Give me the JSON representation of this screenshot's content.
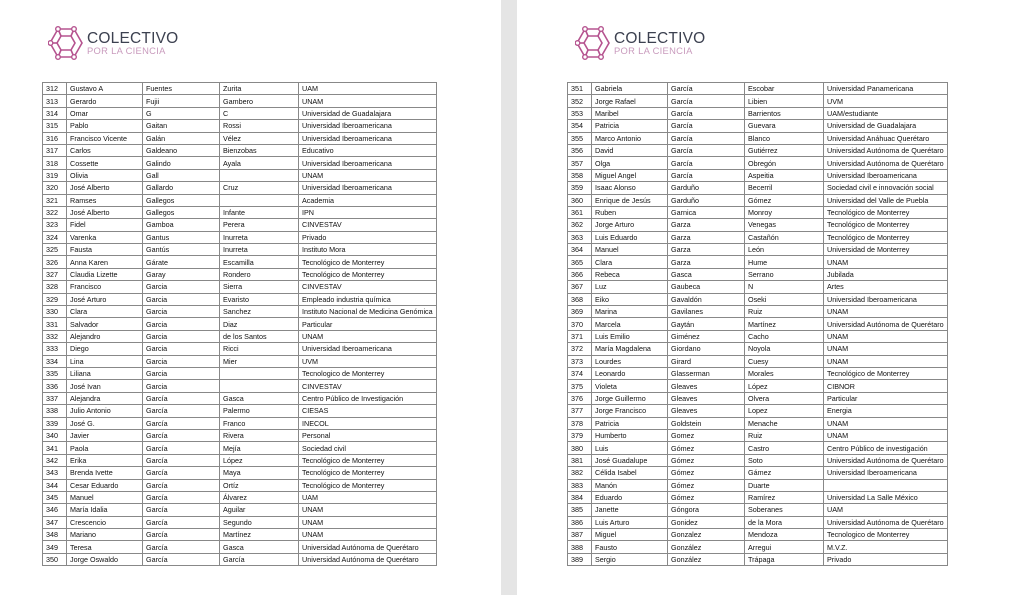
{
  "logo": {
    "title": "COLECTIVO",
    "subtitle": "POR LA CIENCIA",
    "color": "#b5538f"
  },
  "pages": [
    {
      "rows": [
        [
          "312",
          "Gustavo A",
          "Fuentes",
          "Zurita",
          "UAM"
        ],
        [
          "313",
          "Gerardo",
          "Fujii",
          "Gambero",
          "UNAM"
        ],
        [
          "314",
          "Omar",
          "G",
          "C",
          "Universidad de Guadalajara"
        ],
        [
          "315",
          "Pablo",
          "Gaitan",
          "Rossi",
          "Universidad Iberoamericana"
        ],
        [
          "316",
          "Francisco Vicente",
          "Galán",
          "Vélez",
          "Universidad Iberoamericana"
        ],
        [
          "317",
          "Carlos",
          "Galdeano",
          "Bienzobas",
          "Educativo"
        ],
        [
          "318",
          "Cossette",
          "Galindo",
          "Ayala",
          "Universidad Iberoamericana"
        ],
        [
          "319",
          "Olivia",
          "Gall",
          "",
          "UNAM"
        ],
        [
          "320",
          "José Alberto",
          "Gallardo",
          "Cruz",
          "Universidad Iberoamericana"
        ],
        [
          "321",
          "Ramses",
          "Gallegos",
          "",
          "Academia"
        ],
        [
          "322",
          "José Alberto",
          "Gallegos",
          "Infante",
          "IPN"
        ],
        [
          "323",
          "Fidel",
          "Gamboa",
          "Perera",
          "CINVESTAV"
        ],
        [
          "324",
          "Varenka",
          "Gantus",
          "Inurreta",
          "Privado"
        ],
        [
          "325",
          "Fausta",
          "Gantús",
          "Inurreta",
          "Instituto Mora"
        ],
        [
          "326",
          "Anna Karen",
          "Gárate",
          "Escamilla",
          "Tecnológico de Monterrey"
        ],
        [
          "327",
          "Claudia Lizette",
          "Garay",
          "Rondero",
          "Tecnológico de Monterrey"
        ],
        [
          "328",
          "Francisco",
          "Garcia",
          "Sierra",
          "CINVESTAV"
        ],
        [
          "329",
          "José Arturo",
          "Garcia",
          "Evaristo",
          "Empleado industria química"
        ],
        [
          "330",
          "Clara",
          "Garcia",
          "Sanchez",
          "Instituto Nacional de Medicina Genómica"
        ],
        [
          "331",
          "Salvador",
          "Garcia",
          "Diaz",
          "Particular"
        ],
        [
          "332",
          "Alejandro",
          "Garcia",
          "de los Santos",
          "UNAM"
        ],
        [
          "333",
          "Diego",
          "Garcia",
          "Ricci",
          "Universidad Iberoamericana"
        ],
        [
          "334",
          "Lina",
          "Garcia",
          "Mier",
          "UVM"
        ],
        [
          "335",
          "Liliana",
          "Garcia",
          "",
          "Tecnologico de Monterrey"
        ],
        [
          "336",
          "José Ivan",
          "Garcia",
          "",
          "CINVESTAV"
        ],
        [
          "337",
          "Alejandra",
          "García",
          "Gasca",
          "Centro Público de Investigación"
        ],
        [
          "338",
          "Julio Antonio",
          "García",
          "Palermo",
          "CIESAS"
        ],
        [
          "339",
          "José G.",
          "García",
          "Franco",
          "INECOL"
        ],
        [
          "340",
          "Javier",
          "García",
          "Rivera",
          "Personal"
        ],
        [
          "341",
          "Paola",
          "García",
          "Mejía",
          "Sociedad civil"
        ],
        [
          "342",
          "Erika",
          "García",
          "López",
          "Tecnológico de Monterrey"
        ],
        [
          "343",
          "Brenda Ivette",
          "García",
          "Maya",
          "Tecnológico de Monterrey"
        ],
        [
          "344",
          "Cesar Eduardo",
          "García",
          "Ortíz",
          "Tecnológico de Monterrey"
        ],
        [
          "345",
          "Manuel",
          "García",
          "Álvarez",
          "UAM"
        ],
        [
          "346",
          "María Idalia",
          "García",
          "Aguilar",
          "UNAM"
        ],
        [
          "347",
          "Crescencio",
          "García",
          "Segundo",
          "UNAM"
        ],
        [
          "348",
          "Mariano",
          "García",
          "Martínez",
          "UNAM"
        ],
        [
          "349",
          "Teresa",
          "García",
          "Gasca",
          "Universidad Autónoma de Querétaro"
        ],
        [
          "350",
          "Jorge Oswaldo",
          "García",
          "García",
          "Universidad Autónoma de Querétaro"
        ]
      ]
    },
    {
      "rows": [
        [
          "351",
          "Gabriela",
          "García",
          "Escobar",
          "Universidad Panamericana"
        ],
        [
          "352",
          "Jorge Rafael",
          "García",
          "Libien",
          "UVM"
        ],
        [
          "353",
          "Maribel",
          "García",
          "Barrientos",
          "UAM/estudiante"
        ],
        [
          "354",
          "Patricia",
          "García",
          "Guevara",
          "Universidad de Guadalajara"
        ],
        [
          "355",
          "Marco Antonio",
          "García",
          "Blanco",
          "Universidad Anáhuac Querétaro"
        ],
        [
          "356",
          "David",
          "García",
          "Gutiérrez",
          "Universidad Autónoma de Querétaro"
        ],
        [
          "357",
          "Olga",
          "García",
          "Obregón",
          "Universidad Autónoma de Querétaro"
        ],
        [
          "358",
          "Miguel Angel",
          "García",
          "Aspeitia",
          "Universidad Iberoamericana"
        ],
        [
          "359",
          "Isaac Alonso",
          "Garduño",
          "Becerril",
          "Sociedad civil e innovación social"
        ],
        [
          "360",
          "Enrique de Jesús",
          "Garduño",
          "Gómez",
          "Universidad del Valle de Puebla"
        ],
        [
          "361",
          "Ruben",
          "Garnica",
          "Monroy",
          "Tecnológico de Monterrey"
        ],
        [
          "362",
          "Jorge Arturo",
          "Garza",
          "Venegas",
          "Tecnológico de Monterrey"
        ],
        [
          "363",
          "Luis Eduardo",
          "Garza",
          "Castañón",
          "Tecnológico de Monterrey"
        ],
        [
          "364",
          "Manuel",
          "Garza",
          "León",
          "Universidad de Monterrey"
        ],
        [
          "365",
          "Clara",
          "Garza",
          "Hume",
          "UNAM"
        ],
        [
          "366",
          "Rebeca",
          "Gasca",
          "Serrano",
          "Jubilada"
        ],
        [
          "367",
          "Luz",
          "Gaubeca",
          "N",
          "Artes"
        ],
        [
          "368",
          "Eiko",
          "Gavaldón",
          "Oseki",
          "Universidad Iberoamericana"
        ],
        [
          "369",
          "Marina",
          "Gavilanes",
          "Ruiz",
          "UNAM"
        ],
        [
          "370",
          "Marcela",
          "Gaytán",
          "Martínez",
          "Universidad Autónoma de Querétaro"
        ],
        [
          "371",
          "Luis Emilio",
          "Giménez",
          "Cacho",
          "UNAM"
        ],
        [
          "372",
          "María Magdalena",
          "Giordano",
          "Noyola",
          "UNAM"
        ],
        [
          "373",
          "Lourdes",
          "Girard",
          "Cuesy",
          "UNAM"
        ],
        [
          "374",
          "Leonardo",
          "Glasserman",
          "Morales",
          "Tecnológico de Monterrey"
        ],
        [
          "375",
          "Violeta",
          "Gleaves",
          "López",
          "CIBNOR"
        ],
        [
          "376",
          "Jorge Guillermo",
          "Gleaves",
          "Olvera",
          "Particular"
        ],
        [
          "377",
          "Jorge Francisco",
          "Gleaves",
          "Lopez",
          "Energia"
        ],
        [
          "378",
          "Patricia",
          "Goldstein",
          "Menache",
          "UNAM"
        ],
        [
          "379",
          "Humberto",
          "Gomez",
          "Ruiz",
          "UNAM"
        ],
        [
          "380",
          "Luis",
          "Gómez",
          "Castro",
          "Centro Público de investigación"
        ],
        [
          "381",
          "José Guadalupe",
          "Gómez",
          "Soto",
          "Universidad Autónoma de Querétaro"
        ],
        [
          "382",
          "Célida Isabel",
          "Gómez",
          "Gámez",
          "Universidad Iberoamericana"
        ],
        [
          "383",
          "Manón",
          "Gómez",
          "Duarte",
          ""
        ],
        [
          "384",
          "Eduardo",
          "Gómez",
          "Ramírez",
          "Universidad La Salle México"
        ],
        [
          "385",
          "Janette",
          "Góngora",
          "Soberanes",
          "UAM"
        ],
        [
          "386",
          "Luis Arturo",
          "Gonidez",
          "de la Mora",
          "Universidad Autónoma de Querétaro"
        ],
        [
          "387",
          "Miguel",
          "Gonzalez",
          "Mendoza",
          "Tecnologico de Monterrey"
        ],
        [
          "388",
          "Fausto",
          "González",
          "Arregui",
          "M.V.Z."
        ],
        [
          "389",
          "Sergio",
          "González",
          "Trápaga",
          "Privado"
        ]
      ]
    }
  ]
}
